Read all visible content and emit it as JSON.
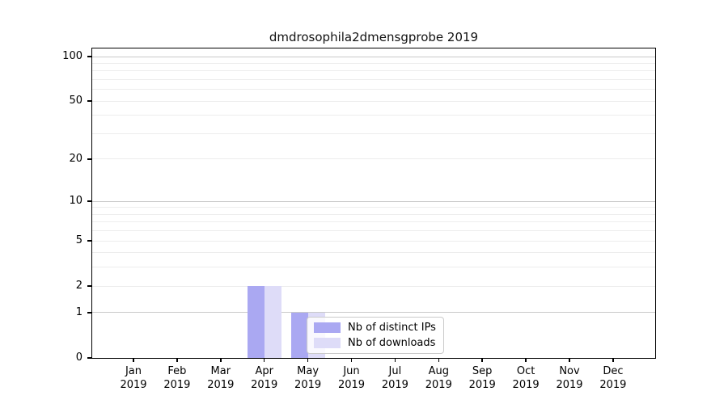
{
  "page": {
    "background": "#ffffff"
  },
  "chart_data": {
    "type": "bar",
    "title": "dmdrosophila2dmensgprobe 2019",
    "categories": [
      {
        "month": "Jan",
        "year": "2019"
      },
      {
        "month": "Feb",
        "year": "2019"
      },
      {
        "month": "Mar",
        "year": "2019"
      },
      {
        "month": "Apr",
        "year": "2019"
      },
      {
        "month": "May",
        "year": "2019"
      },
      {
        "month": "Jun",
        "year": "2019"
      },
      {
        "month": "Jul",
        "year": "2019"
      },
      {
        "month": "Aug",
        "year": "2019"
      },
      {
        "month": "Sep",
        "year": "2019"
      },
      {
        "month": "Oct",
        "year": "2019"
      },
      {
        "month": "Nov",
        "year": "2019"
      },
      {
        "month": "Dec",
        "year": "2019"
      }
    ],
    "series": [
      {
        "name": "Nb of distinct IPs",
        "color": "#aaa8f2",
        "values": [
          0,
          0,
          0,
          2,
          1,
          0,
          0,
          0,
          0,
          0,
          0,
          0
        ]
      },
      {
        "name": "Nb of downloads",
        "color": "#dedcf8",
        "values": [
          0,
          0,
          0,
          2,
          1,
          0,
          0,
          0,
          0,
          0,
          0,
          0
        ]
      }
    ],
    "xlabel": "",
    "ylabel": "",
    "yscale": "log1p",
    "ylim": [
      0,
      113
    ],
    "yticks": [
      0,
      1,
      2,
      5,
      10,
      20,
      50,
      100
    ],
    "major_gridlines": [
      1,
      10,
      100
    ],
    "minor_gridlines": [
      2,
      3,
      4,
      5,
      6,
      7,
      8,
      9,
      20,
      30,
      40,
      50,
      60,
      70,
      80,
      90
    ],
    "grid": true,
    "legend_position": "inside-bottom-center"
  },
  "legend": {
    "entries": [
      "Nb of distinct IPs",
      "Nb of downloads"
    ]
  }
}
